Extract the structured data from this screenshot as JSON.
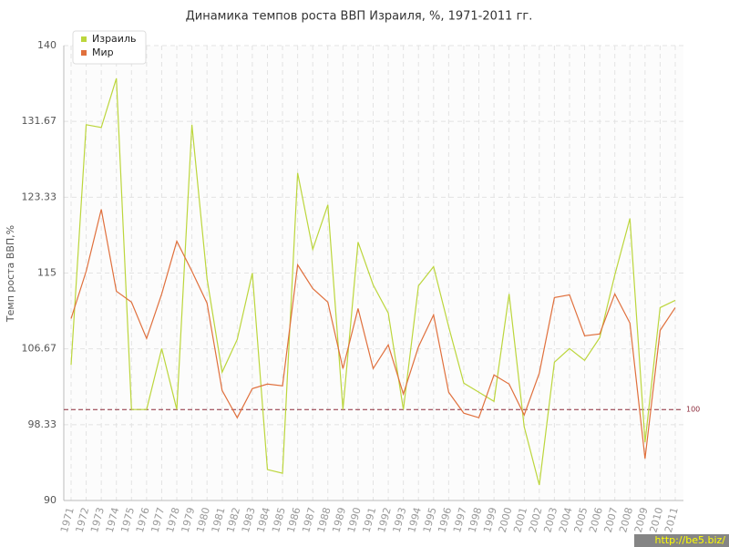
{
  "chart_data": {
    "type": "line",
    "title": "Динамика темпов роста ВВП Израиля, %, 1971-2011 гг.",
    "y_label": "Темп роста ВВП,%",
    "categories": [
      "1971",
      "1972",
      "1973",
      "1974",
      "1975",
      "1976",
      "1977",
      "1978",
      "1979",
      "1980",
      "1981",
      "1982",
      "1983",
      "1984",
      "1985",
      "1986",
      "1987",
      "1988",
      "1989",
      "1990",
      "1991",
      "1992",
      "1993",
      "1994",
      "1995",
      "1996",
      "1997",
      "1998",
      "1999",
      "2000",
      "2001",
      "2002",
      "2003",
      "2004",
      "2005",
      "2006",
      "2007",
      "2008",
      "2009",
      "2010",
      "2011"
    ],
    "series": [
      {
        "name": "Израиль",
        "color": "#bcd63c",
        "values": [
          104.9,
          131.3,
          131.0,
          136.4,
          100,
          100,
          106.7,
          100,
          131.3,
          114.4,
          104.1,
          107.7,
          115,
          93.4,
          93.0,
          126,
          117.6,
          122.5,
          100,
          118.4,
          113.7,
          110.6,
          100,
          113.6,
          115.7,
          109.1,
          102.9,
          101.9,
          100.9,
          112.7,
          98.1,
          91.7,
          105.2,
          106.7,
          105.4,
          107.9,
          114.8,
          121,
          96.4,
          111.2,
          112
        ]
      },
      {
        "name": "Мир",
        "color": "#e0703d",
        "values": [
          110,
          115.2,
          122,
          113,
          111.8,
          107.8,
          112.7,
          118.5,
          115.2,
          111.7,
          102.1,
          99.1,
          102.3,
          102.8,
          102.6,
          115.9,
          113.3,
          111.8,
          104.5,
          111.1,
          104.5,
          107.1,
          101.7,
          106.9,
          110.4,
          101.9,
          99.6,
          99.1,
          103.8,
          102.8,
          99.4,
          104,
          112.3,
          112.6,
          108.1,
          108.3,
          112.7,
          109.5,
          94.6,
          108.7,
          111.2
        ]
      }
    ],
    "ylim": [
      90,
      140
    ],
    "yticks": [
      90,
      98.33,
      106.67,
      115,
      123.33,
      131.67,
      140
    ],
    "grid": true,
    "legend": "top-left",
    "reference_line": {
      "value": 100,
      "label": "100",
      "color": "#8b2a3a"
    },
    "watermark": "http://be5.biz/"
  }
}
